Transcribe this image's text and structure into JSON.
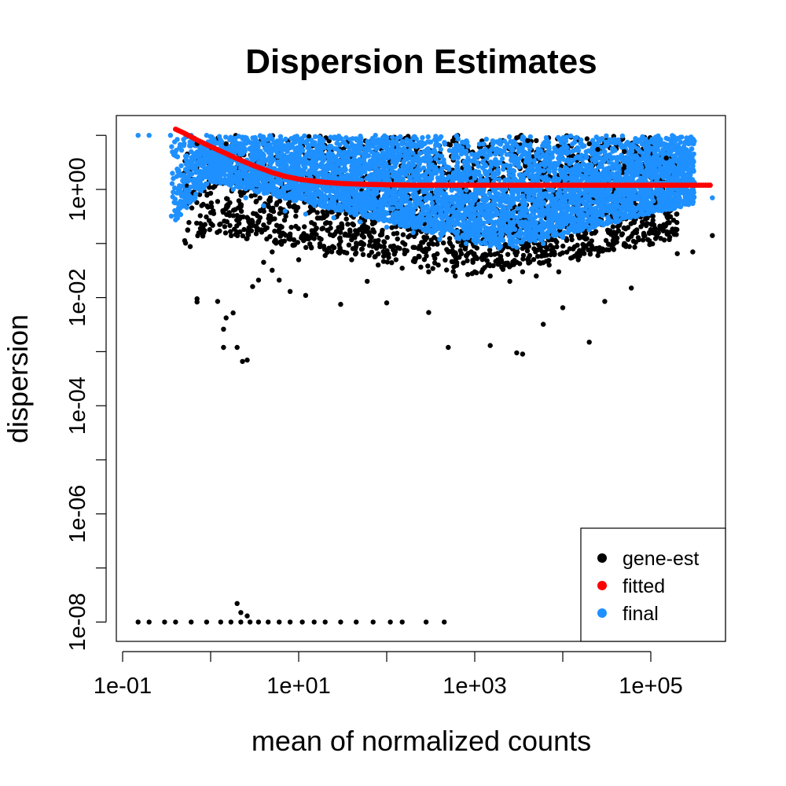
{
  "chart_data": {
    "type": "scatter",
    "title": "Dispersion Estimates",
    "xlabel": "mean of normalized counts",
    "ylabel": "dispersion",
    "x_scale": "log10",
    "y_scale": "log10",
    "xlim": [
      0.1,
      500000
    ],
    "ylim": [
      1e-08,
      10
    ],
    "x_ticks": [
      {
        "value": 0.1,
        "label": "1e-01"
      },
      {
        "value": 1,
        "label": ""
      },
      {
        "value": 10,
        "label": "1e+01"
      },
      {
        "value": 100,
        "label": ""
      },
      {
        "value": 1000,
        "label": "1e+03"
      },
      {
        "value": 10000,
        "label": ""
      },
      {
        "value": 100000,
        "label": "1e+05"
      }
    ],
    "y_ticks": [
      {
        "value": 1e-08,
        "label": "1e-08"
      },
      {
        "value": 1e-07,
        "label": ""
      },
      {
        "value": 1e-06,
        "label": "1e-06"
      },
      {
        "value": 1e-05,
        "label": ""
      },
      {
        "value": 0.0001,
        "label": "1e-04"
      },
      {
        "value": 0.001,
        "label": ""
      },
      {
        "value": 0.01,
        "label": "1e-02"
      },
      {
        "value": 0.1,
        "label": ""
      },
      {
        "value": 1,
        "label": "1e+00"
      },
      {
        "value": 10,
        "label": ""
      }
    ],
    "legend": {
      "position": "bottom-right",
      "entries": [
        {
          "label": "gene-est",
          "color": "#000000"
        },
        {
          "label": "fitted",
          "color": "#ff0000"
        },
        {
          "label": "final",
          "color": "#1e90ff"
        }
      ]
    },
    "series": [
      {
        "name": "gene-est",
        "color": "#000000",
        "points": [
          [
            0.15,
            1e-08
          ],
          [
            0.2,
            1e-08
          ],
          [
            0.3,
            1e-08
          ],
          [
            0.4,
            1e-08
          ],
          [
            0.6,
            1e-08
          ],
          [
            0.9,
            1e-08
          ],
          [
            1.3,
            1e-08
          ],
          [
            1.7,
            1e-08
          ],
          [
            2.2,
            1e-08
          ],
          [
            2.8,
            1e-08
          ],
          [
            3.5,
            1e-08
          ],
          [
            4.5,
            1e-08
          ],
          [
            6,
            1e-08
          ],
          [
            8,
            1e-08
          ],
          [
            11,
            1e-08
          ],
          [
            15,
            1e-08
          ],
          [
            20,
            1e-08
          ],
          [
            30,
            1e-08
          ],
          [
            45,
            1e-08
          ],
          [
            70,
            1e-08
          ],
          [
            110,
            1e-08
          ],
          [
            150,
            1e-08
          ],
          [
            280,
            1e-08
          ],
          [
            450,
            1e-08
          ],
          [
            2,
            2.2e-08
          ],
          [
            2.2,
            1.5e-08
          ],
          [
            2.6,
            1.3e-08
          ],
          [
            0.7,
            0.0095
          ],
          [
            0.7,
            0.0083
          ],
          [
            1.2,
            0.0085
          ],
          [
            1.5,
            0.0042
          ],
          [
            1.8,
            0.0052
          ],
          [
            1.4,
            0.0026
          ],
          [
            2,
            0.0012
          ],
          [
            1.4,
            0.0012
          ],
          [
            2.3,
            0.00066
          ],
          [
            2.6,
            0.0007
          ],
          [
            3,
            0.016
          ],
          [
            3.5,
            0.021
          ],
          [
            5,
            0.032
          ],
          [
            6,
            0.021
          ],
          [
            4,
            0.045
          ],
          [
            8,
            0.013
          ],
          [
            12,
            0.011
          ],
          [
            30,
            0.0075
          ],
          [
            60,
            0.02
          ],
          [
            100,
            0.008
          ],
          [
            300,
            0.0053
          ],
          [
            500,
            0.0012
          ],
          [
            1500,
            0.0013
          ],
          [
            3000,
            0.00095
          ],
          [
            3500,
            0.0009
          ],
          [
            6000,
            0.0032
          ],
          [
            10000,
            0.0065
          ],
          [
            20000,
            0.0015
          ],
          [
            30000,
            0.0085
          ],
          [
            60000,
            0.015
          ],
          [
            200000,
            0.065
          ],
          [
            300000,
            0.07
          ],
          [
            500000,
            0.14
          ],
          [
            0.7,
            7
          ],
          [
            0.7,
            8
          ],
          [
            1.5,
            7
          ],
          [
            3000,
            9
          ],
          [
            4000,
            8
          ],
          [
            5000,
            8
          ],
          [
            20000,
            7
          ],
          [
            25000,
            5.5
          ],
          [
            50000,
            5
          ],
          [
            150000,
            3.8
          ],
          [
            1,
            0.85
          ],
          [
            1.2,
            0.6
          ],
          [
            1.5,
            0.45
          ],
          [
            2,
            0.33
          ],
          [
            3,
            0.25
          ],
          [
            4,
            0.22
          ],
          [
            6,
            0.18
          ],
          [
            8,
            0.15
          ],
          [
            12,
            0.13
          ],
          [
            18,
            0.12
          ],
          [
            30,
            0.11
          ],
          [
            50,
            0.1
          ],
          [
            80,
            0.095
          ],
          [
            120,
            0.09
          ],
          [
            200,
            0.085
          ],
          [
            300,
            0.08
          ],
          [
            500,
            0.07
          ],
          [
            800,
            0.06
          ],
          [
            1200,
            0.055
          ],
          [
            2000,
            0.05
          ],
          [
            3000,
            0.045
          ],
          [
            4000,
            0.05
          ],
          [
            6000,
            0.06
          ],
          [
            8000,
            0.07
          ],
          [
            12000,
            0.08
          ],
          [
            20000,
            0.1
          ],
          [
            40000,
            0.15
          ],
          [
            80000,
            0.25
          ],
          [
            5,
            0.07
          ],
          [
            10,
            0.05
          ],
          [
            20,
            0.06
          ],
          [
            40,
            0.05
          ],
          [
            80,
            0.04
          ],
          [
            150,
            0.035
          ],
          [
            300,
            0.03
          ],
          [
            600,
            0.025
          ],
          [
            1000,
            0.03
          ],
          [
            1500,
            0.025
          ],
          [
            2500,
            0.02
          ],
          [
            3500,
            0.03
          ],
          [
            5000,
            0.025
          ],
          [
            7000,
            0.04
          ],
          [
            9000,
            0.03
          ],
          [
            15000,
            0.05
          ],
          [
            25000,
            0.06
          ],
          [
            50000,
            0.1
          ],
          [
            100000,
            0.18
          ]
        ]
      },
      {
        "name": "fitted",
        "color": "#ff0000",
        "points": [
          [
            0.4,
            13
          ],
          [
            0.5,
            11
          ],
          [
            0.7,
            8.2
          ],
          [
            1,
            6.2
          ],
          [
            1.5,
            4.6
          ],
          [
            2,
            3.7
          ],
          [
            3,
            2.8
          ],
          [
            5,
            2.05
          ],
          [
            7,
            1.75
          ],
          [
            10,
            1.55
          ],
          [
            15,
            1.42
          ],
          [
            20,
            1.35
          ],
          [
            30,
            1.29
          ],
          [
            50,
            1.25
          ],
          [
            100,
            1.22
          ],
          [
            200,
            1.2
          ],
          [
            500,
            1.2
          ],
          [
            1000,
            1.2
          ],
          [
            5000,
            1.2
          ],
          [
            10000,
            1.2
          ],
          [
            50000,
            1.2
          ],
          [
            100000,
            1.2
          ],
          [
            250000,
            1.2
          ],
          [
            500000,
            1.2
          ]
        ]
      },
      {
        "name": "final",
        "color": "#1e90ff",
        "points": [
          [
            0.15,
            10
          ],
          [
            0.2,
            10
          ],
          [
            0.35,
            10
          ],
          [
            0.6,
            10
          ],
          [
            0.9,
            10
          ],
          [
            0.6,
            5
          ],
          [
            0.65,
            3.5
          ],
          [
            0.9,
            4
          ],
          [
            1.3,
            2
          ],
          [
            1.8,
            1
          ],
          [
            2.5,
            0.7
          ],
          [
            4,
            0.5
          ],
          [
            7,
            0.4
          ],
          [
            12,
            0.35
          ],
          [
            25,
            0.3
          ],
          [
            50,
            0.25
          ],
          [
            100,
            0.2
          ],
          [
            200,
            0.16
          ],
          [
            400,
            0.12
          ],
          [
            800,
            0.1
          ],
          [
            1500,
            0.09
          ],
          [
            3000,
            0.085
          ],
          [
            6000,
            0.1
          ],
          [
            10000,
            0.13
          ],
          [
            20000,
            0.18
          ],
          [
            40000,
            0.25
          ],
          [
            80000,
            0.35
          ],
          [
            150000,
            0.45
          ],
          [
            300000,
            0.55
          ],
          [
            500000,
            0.7
          ],
          [
            60000,
            3
          ],
          [
            100000,
            2
          ],
          [
            30000,
            5
          ],
          [
            200000,
            0.8
          ]
        ]
      }
    ]
  }
}
